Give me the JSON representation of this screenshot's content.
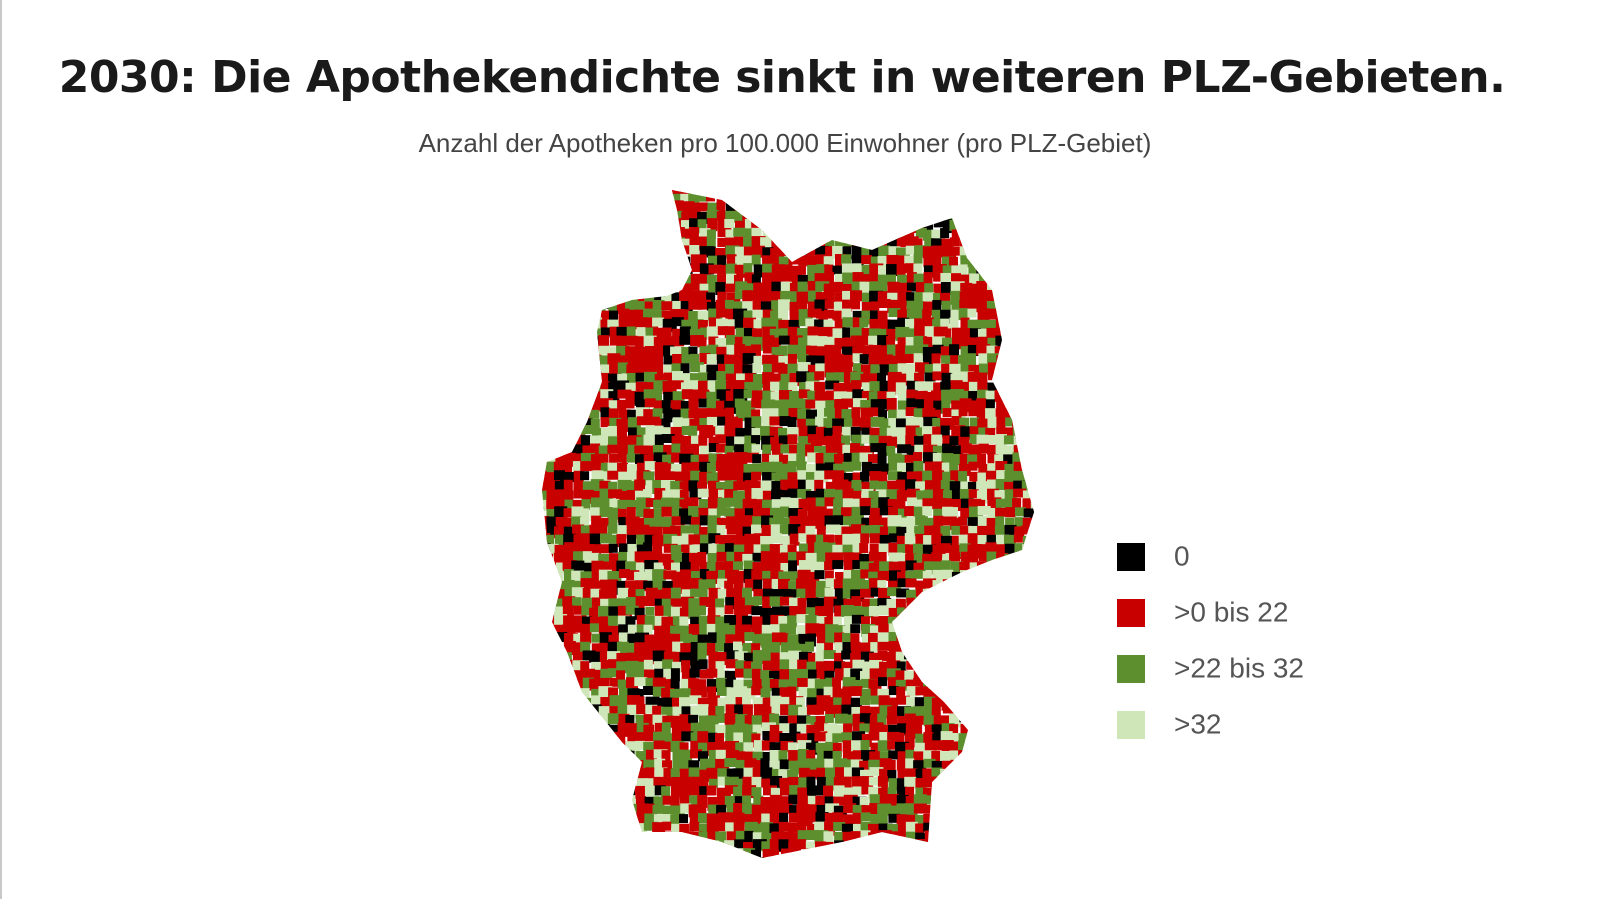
{
  "header": {
    "title": "2030: Die Apothekendichte sinkt in weiteren PLZ-Gebieten.",
    "subtitle": "Anzahl der Apotheken pro 100.000 Einwohner (pro PLZ-Gebiet)"
  },
  "legend": [
    {
      "label": "0",
      "color": "#000000"
    },
    {
      "label": ">0 bis 22",
      "color": "#c80000"
    },
    {
      "label": ">22 bis 32",
      "color": "#5e8f2e"
    },
    {
      "label": ">32",
      "color": "#cfe6b8"
    }
  ]
}
